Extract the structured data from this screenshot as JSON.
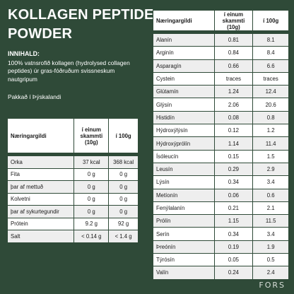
{
  "title_line1": "KOLLAGEN PEPTIDE",
  "title_line2": "POWDER",
  "ingredients": {
    "heading": "INNIHALD:",
    "text": "100% vatnsrofið kollagen (hydrolysed collagen peptides) úr gras-fóðruðum svissneskum nautgripum",
    "made_in": "Pakkað í Þýskalandi"
  },
  "left_table": {
    "headers": [
      "Næringargildi",
      "í einum skammti (10g)",
      "í 100g"
    ],
    "rows": [
      [
        "Orka",
        "37 kcal",
        "368 kcal"
      ],
      [
        "Fita",
        "0 g",
        "0 g"
      ],
      [
        "þar af mettuð",
        "0 g",
        "0 g"
      ],
      [
        "Kolvetni",
        "0 g",
        "0 g"
      ],
      [
        "þar af sykurtegundir",
        "0 g",
        "0 g"
      ],
      [
        "Prótein",
        "9.2 g",
        "92 g"
      ],
      [
        "Salt",
        "< 0.14 g",
        "< 1.4 g"
      ]
    ]
  },
  "right_table": {
    "headers": [
      "Næringargildi",
      "í einum skammti (10g)",
      "í 100g"
    ],
    "rows": [
      [
        "Alanín",
        "0.81",
        "8.1"
      ],
      [
        "Arginín",
        "0.84",
        "8.4"
      ],
      [
        "Asparagín",
        "0.66",
        "6.6"
      ],
      [
        "Cystein",
        "traces",
        "traces"
      ],
      [
        "Glútamín",
        "1.24",
        "12.4"
      ],
      [
        "Glýsín",
        "2.06",
        "20.6"
      ],
      [
        "Histidín",
        "0.08",
        "0.8"
      ],
      [
        "Hýdroxýlýsín",
        "0.12",
        "1.2"
      ],
      [
        "Hýdroxýprólín",
        "1.14",
        "11.4"
      ],
      [
        "Ísóleucín",
        "0.15",
        "1.5"
      ],
      [
        "Leusín",
        "0.29",
        "2.9"
      ],
      [
        "Lýsín",
        "0.34",
        "3.4"
      ],
      [
        "Metíonín",
        "0.06",
        "0.6"
      ],
      [
        "Fenýlalanín",
        "0.21",
        "2.1"
      ],
      [
        "Prólín",
        "1.15",
        "11.5"
      ],
      [
        "Serín",
        "0.34",
        "3.4"
      ],
      [
        "Þreónín",
        "0.19",
        "1.9"
      ],
      [
        "Týrósín",
        "0.05",
        "0.5"
      ],
      [
        "Valín",
        "0.24",
        "2.4"
      ]
    ]
  },
  "logo": "FORS"
}
